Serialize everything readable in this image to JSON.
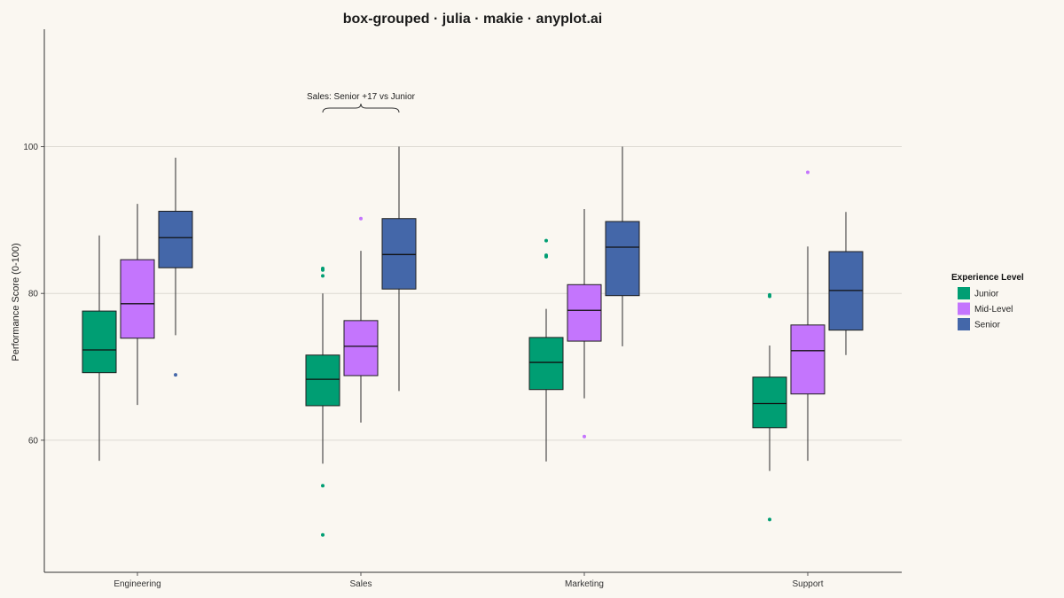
{
  "chart_data": {
    "type": "box",
    "title": "box-grouped · julia · makie · anyplot.ai",
    "ylabel": "Performance Score (0-100)",
    "ylim": [
      42,
      116
    ],
    "yticks": [
      60,
      80,
      100
    ],
    "grid": true,
    "categories": [
      "Engineering",
      "Sales",
      "Marketing",
      "Support"
    ],
    "legend": {
      "title": "Experience Level",
      "position": "right"
    },
    "annotation": {
      "text": "Sales: Senior +17 vs Junior",
      "category": "Sales",
      "from_series": "Junior",
      "to_series": "Senior"
    },
    "series": [
      {
        "name": "Junior",
        "color": "#009E73",
        "boxes": [
          {
            "whisker_low": 57.2,
            "q1": 69.2,
            "median": 72.3,
            "q3": 77.6,
            "whisker_high": 87.9,
            "outliers": []
          },
          {
            "whisker_low": 56.8,
            "q1": 64.7,
            "median": 68.3,
            "q3": 71.6,
            "whisker_high": 80.0,
            "outliers": [
              83.4,
              83.2,
              82.4,
              53.8,
              47.1
            ]
          },
          {
            "whisker_low": 57.1,
            "q1": 66.9,
            "median": 70.6,
            "q3": 74.0,
            "whisker_high": 77.9,
            "outliers": [
              87.2,
              85.2,
              85.0
            ]
          },
          {
            "whisker_low": 55.8,
            "q1": 61.7,
            "median": 65.0,
            "q3": 68.6,
            "whisker_high": 72.9,
            "outliers": [
              79.8,
              79.6,
              49.2
            ]
          }
        ]
      },
      {
        "name": "Mid-Level",
        "color": "#C475FD",
        "boxes": [
          {
            "whisker_low": 64.8,
            "q1": 73.9,
            "median": 78.6,
            "q3": 84.6,
            "whisker_high": 92.2,
            "outliers": []
          },
          {
            "whisker_low": 62.4,
            "q1": 68.8,
            "median": 72.8,
            "q3": 76.3,
            "whisker_high": 85.8,
            "outliers": [
              90.2
            ]
          },
          {
            "whisker_low": 65.7,
            "q1": 73.5,
            "median": 77.7,
            "q3": 81.2,
            "whisker_high": 91.5,
            "outliers": [
              60.5
            ]
          },
          {
            "whisker_low": 57.2,
            "q1": 66.3,
            "median": 72.2,
            "q3": 75.7,
            "whisker_high": 86.4,
            "outliers": [
              96.5
            ]
          }
        ]
      },
      {
        "name": "Senior",
        "color": "#4467A9",
        "boxes": [
          {
            "whisker_low": 74.3,
            "q1": 83.5,
            "median": 87.6,
            "q3": 91.2,
            "whisker_high": 98.5,
            "outliers": [
              68.9
            ]
          },
          {
            "whisker_low": 66.7,
            "q1": 80.6,
            "median": 85.3,
            "q3": 90.2,
            "whisker_high": 100.0,
            "outliers": []
          },
          {
            "whisker_low": 72.8,
            "q1": 79.7,
            "median": 86.3,
            "q3": 89.8,
            "whisker_high": 100.0,
            "outliers": []
          },
          {
            "whisker_low": 71.6,
            "q1": 75.0,
            "median": 80.4,
            "q3": 85.7,
            "whisker_high": 91.1,
            "outliers": []
          }
        ]
      }
    ]
  }
}
